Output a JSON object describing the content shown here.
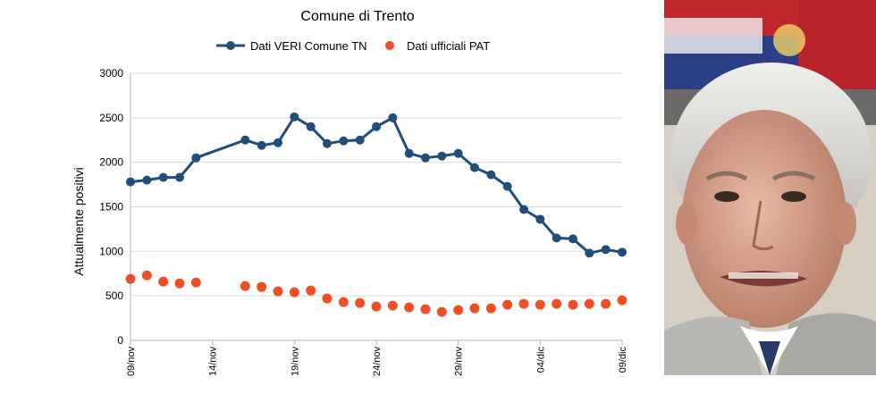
{
  "chart_data": {
    "type": "line",
    "title": "Comune di Trento",
    "ylabel": "Attualmente positivi",
    "xlabel": "",
    "ylim": [
      0,
      3000
    ],
    "yticks": [
      0,
      500,
      1000,
      1500,
      2000,
      2500,
      3000
    ],
    "grid": true,
    "legend_position": "top",
    "x_tick_labels": [
      "09/nov",
      "14/nov",
      "19/nov",
      "24/nov",
      "29/nov",
      "04/dic",
      "09/dic"
    ],
    "x_tick_day_index": [
      0,
      5,
      10,
      15,
      20,
      25,
      30
    ],
    "series": [
      {
        "name": "Dati VERI Comune TN",
        "style": "line-with-markers",
        "color": "#1f4e79",
        "points": [
          [
            0,
            1780
          ],
          [
            1,
            1800
          ],
          [
            2,
            1830
          ],
          [
            3,
            1830
          ],
          [
            4,
            2050
          ],
          [
            7,
            2250
          ],
          [
            8,
            2190
          ],
          [
            9,
            2220
          ],
          [
            10,
            2510
          ],
          [
            11,
            2400
          ],
          [
            12,
            2210
          ],
          [
            13,
            2240
          ],
          [
            14,
            2250
          ],
          [
            15,
            2400
          ],
          [
            16,
            2500
          ],
          [
            17,
            2100
          ],
          [
            18,
            2050
          ],
          [
            19,
            2070
          ],
          [
            20,
            2100
          ],
          [
            21,
            1940
          ],
          [
            22,
            1860
          ],
          [
            23,
            1730
          ],
          [
            24,
            1470
          ],
          [
            25,
            1360
          ],
          [
            26,
            1150
          ],
          [
            27,
            1140
          ],
          [
            28,
            980
          ],
          [
            29,
            1020
          ],
          [
            30,
            990
          ]
        ]
      },
      {
        "name": "Dati ufficiali PAT",
        "style": "markers",
        "color": "#f04e23",
        "points": [
          [
            0,
            690
          ],
          [
            1,
            730
          ],
          [
            2,
            660
          ],
          [
            3,
            640
          ],
          [
            4,
            650
          ],
          [
            7,
            610
          ],
          [
            8,
            600
          ],
          [
            9,
            550
          ],
          [
            10,
            540
          ],
          [
            11,
            560
          ],
          [
            12,
            470
          ],
          [
            13,
            430
          ],
          [
            14,
            420
          ],
          [
            15,
            380
          ],
          [
            16,
            390
          ],
          [
            17,
            370
          ],
          [
            18,
            350
          ],
          [
            19,
            320
          ],
          [
            20,
            340
          ],
          [
            21,
            360
          ],
          [
            22,
            360
          ],
          [
            23,
            400
          ],
          [
            24,
            410
          ],
          [
            25,
            400
          ],
          [
            26,
            410
          ],
          [
            27,
            400
          ],
          [
            28,
            410
          ],
          [
            29,
            410
          ],
          [
            30,
            450
          ]
        ]
      }
    ]
  },
  "photo": {
    "description_icon": "portrait-photo-icon",
    "flag_colors": [
      "#c0282d",
      "#1f3f8f",
      "#f2f2f2"
    ]
  }
}
